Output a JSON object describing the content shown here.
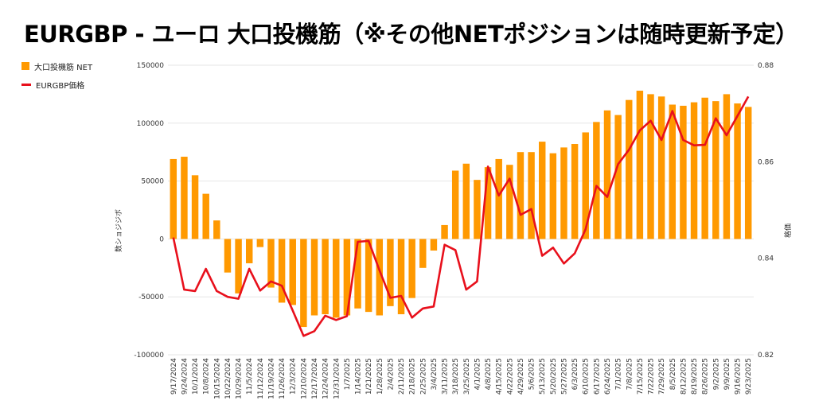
{
  "title": "EURGBP - ユーロ 大口投機筋（※その他NETポジションは随時更新予定）",
  "colors": {
    "bar": "#ff9900",
    "line": "#e8101c",
    "grid": "#e6e6e6"
  },
  "chart_data": {
    "type": "bar",
    "x_tick_labels": [
      "9/17/2024",
      "9/24/2024",
      "10/1/2024",
      "10/8/2024",
      "10/15/2024",
      "10/22/2024",
      "10/29/2024",
      "11/5/2024",
      "11/12/2024",
      "11/19/2024",
      "11/26/2024",
      "12/3/2024",
      "12/10/2024",
      "12/17/2024",
      "12/24/2024",
      "12/31/2024",
      "1/7/2025",
      "1/14/2025",
      "1/21/2025",
      "1/28/2025",
      "2/4/2025",
      "2/11/2025",
      "2/18/2025",
      "2/25/2025",
      "3/4/2025",
      "3/11/2025",
      "3/18/2025",
      "3/25/2025",
      "4/1/2025",
      "4/8/2025",
      "4/15/2025",
      "4/22/2025",
      "4/29/2025",
      "5/6/2025",
      "5/13/2025",
      "5/20/2025",
      "5/27/2025",
      "6/3/2025",
      "6/10/2025",
      "6/17/2025",
      "6/24/2025",
      "7/1/2025",
      "7/8/2025",
      "7/15/2025",
      "7/22/2025",
      "7/29/2025",
      "8/5/2025",
      "8/12/2025",
      "8/19/2025",
      "8/26/2025",
      "9/2/2025",
      "9/9/2025",
      "9/16/2025",
      "9/23/2025"
    ],
    "series": [
      {
        "name": "大口投機筋 NET",
        "type": "bar",
        "axis": "left",
        "values": [
          69000,
          71000,
          55000,
          39000,
          16000,
          -29000,
          -47000,
          -21000,
          -7000,
          -42000,
          -55000,
          -57000,
          -76000,
          -66000,
          -65000,
          -68000,
          -66000,
          -60000,
          -63000,
          -66000,
          -58000,
          -65000,
          -51000,
          -25000,
          -10000,
          12000,
          59000,
          65000,
          51000,
          62000,
          69000,
          64000,
          75000,
          75000,
          84000,
          74000,
          79000,
          82000,
          92000,
          101000,
          111000,
          107000,
          120000,
          128000,
          125000,
          123000,
          116000,
          115000,
          118000,
          122000,
          119000,
          125000,
          117000,
          114000
        ]
      },
      {
        "name": "EURGBP価格",
        "type": "line",
        "axis": "right",
        "values": [
          0.8443,
          0.8335,
          0.8332,
          0.8378,
          0.8332,
          0.832,
          0.8316,
          0.8378,
          0.8333,
          0.8352,
          0.8343,
          0.8292,
          0.8239,
          0.8249,
          0.8281,
          0.8272,
          0.828,
          0.8434,
          0.8436,
          0.8375,
          0.8318,
          0.8322,
          0.8277,
          0.8296,
          0.83,
          0.8428,
          0.8417,
          0.8335,
          0.8352,
          0.859,
          0.853,
          0.8565,
          0.849,
          0.8502,
          0.8405,
          0.8422,
          0.8389,
          0.841,
          0.846,
          0.855,
          0.8527,
          0.8595,
          0.8625,
          0.8665,
          0.8685,
          0.8645,
          0.8705,
          0.8645,
          0.8634,
          0.8635,
          0.869,
          0.8655,
          0.8695,
          0.8735
        ]
      }
    ],
    "y_left": {
      "label": "数ショジジボ",
      "min": -100000,
      "max": 150000,
      "ticks": [
        "-100000",
        "-50000",
        "0",
        "50000",
        "100000",
        "150000"
      ]
    },
    "y_right": {
      "label": "格価",
      "min": 0.82,
      "max": 0.88,
      "ticks": [
        "0.82",
        "0.84",
        "0.86",
        "0.88"
      ]
    },
    "grid": true,
    "legend": "left"
  }
}
